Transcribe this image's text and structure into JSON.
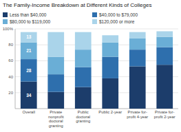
{
  "chart_data": {
    "type": "bar",
    "stacked": true,
    "title": "The Family-Income Breakdown at Different Kinds of Colleges",
    "categories": [
      "Overall",
      "Private\nnonprofit\ndoctoral\ngranting",
      "Public\ndoctoral\ngranting",
      "Public 2-year",
      "Private for-\nprofit 4-year",
      "Private for-\nprofit 2-year"
    ],
    "series": [
      {
        "name": "Less than $40,000",
        "color": "#1c3d6b",
        "values": [
          34,
          21,
          27,
          38,
          53,
          55
        ],
        "value_labels": [
          "34",
          null,
          null,
          null,
          null,
          null
        ]
      },
      {
        "name": "$40,000 to $79,000",
        "color": "#2e6fad",
        "values": [
          28,
          22,
          25,
          27,
          21,
          22
        ],
        "value_labels": [
          "28",
          null,
          null,
          null,
          null,
          null
        ]
      },
      {
        "name": "$80,000 to $119,000",
        "color": "#6aaed6",
        "values": [
          21,
          22,
          22,
          18,
          14,
          13
        ],
        "value_labels": [
          "21",
          null,
          null,
          null,
          null,
          null
        ]
      },
      {
        "name": "$120,000 or more",
        "color": "#aad4ea",
        "values": [
          13,
          31,
          22,
          9,
          8,
          7
        ],
        "value_labels": [
          "13",
          null,
          null,
          null,
          null,
          null
        ]
      }
    ],
    "ylim": [
      0,
      100
    ],
    "yticks": [
      20,
      40,
      60,
      80,
      {
        "value": 100,
        "label": "100%"
      }
    ],
    "grid": true,
    "data_labels": true
  }
}
